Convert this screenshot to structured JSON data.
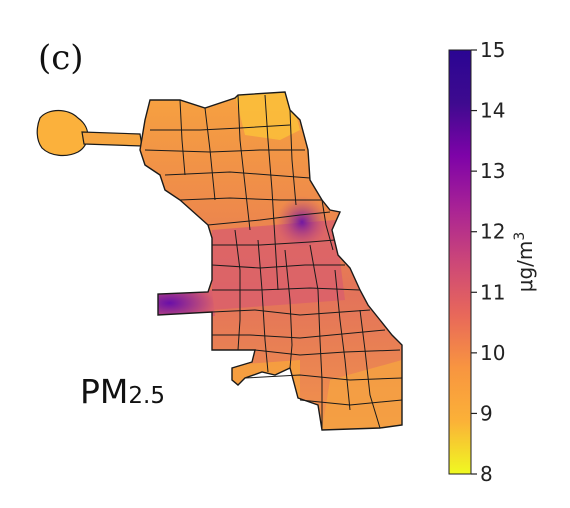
{
  "panel_label": "(c)",
  "pollutant": {
    "base": "PM",
    "subscript": "2.5"
  },
  "colorbar": {
    "min": 8,
    "max": 15,
    "ticks": [
      8,
      9,
      10,
      11,
      12,
      13,
      14,
      15
    ],
    "tick_labels": [
      "8",
      "9",
      "10",
      "11",
      "12",
      "13",
      "14",
      "15"
    ],
    "unit_base": "μg/m",
    "unit_exp": "3",
    "colormap": "plasma",
    "colors": [
      "#f0f921",
      "#fbb138",
      "#f89540",
      "#e8685a",
      "#cc4778",
      "#a92395",
      "#7e03a8",
      "#3e0a8f",
      "#2a0593"
    ]
  },
  "map": {
    "region": "Chicago community areas",
    "fill_low": "#fbb13c",
    "fill_mid": "#f28f47",
    "fill_high": "#d25a6a",
    "hotspot": "#7a1fa3",
    "boundary_color": "#1a1a1a"
  }
}
